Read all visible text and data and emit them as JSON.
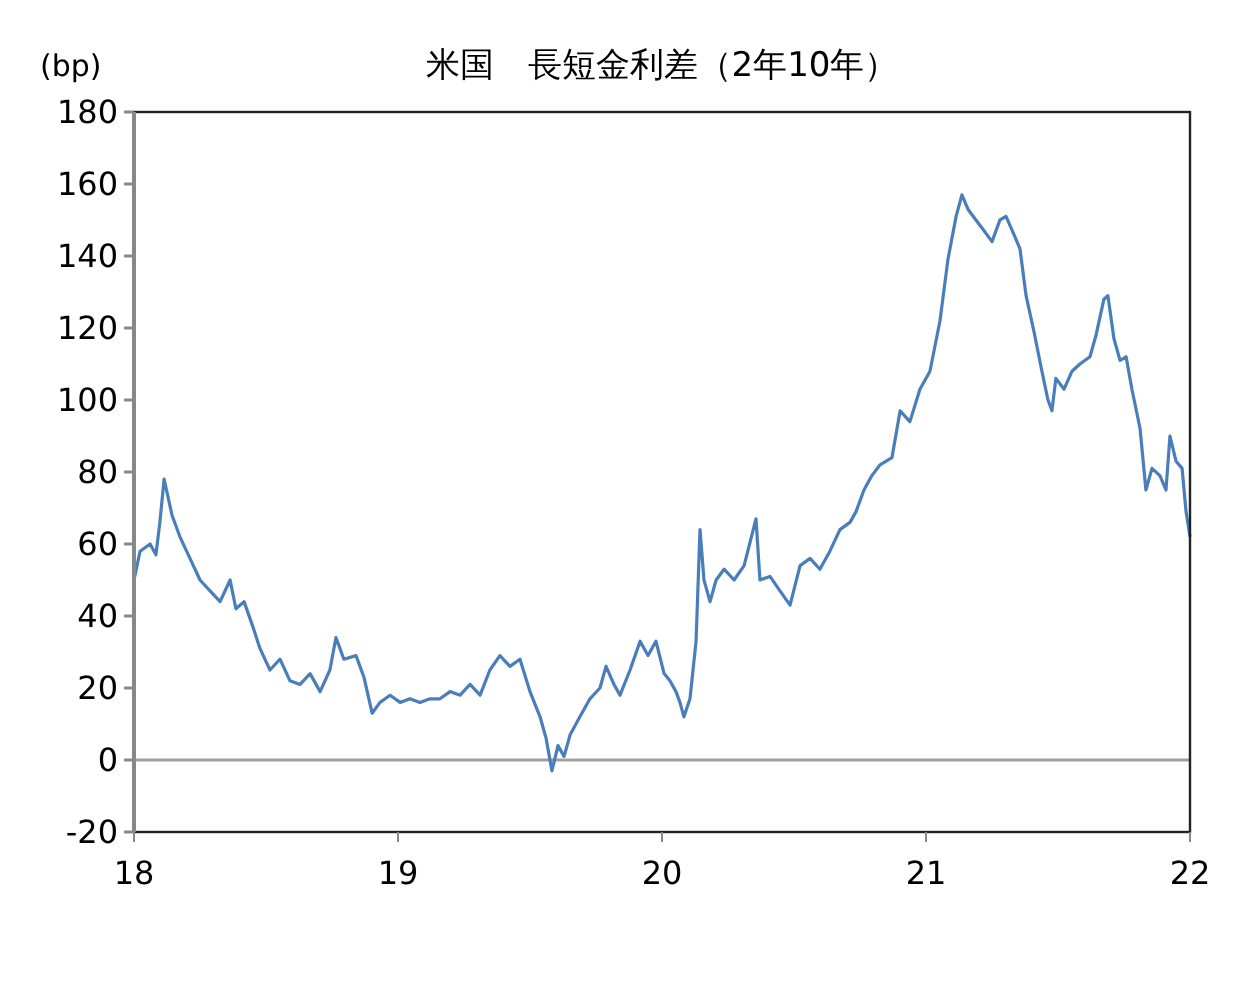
{
  "chart_data": {
    "type": "line",
    "title": "米国　長短金利差（2年10年）",
    "ylabel": "(bp)",
    "xlim": [
      18,
      22
    ],
    "xticks": [
      18,
      19,
      20,
      21,
      22
    ],
    "ylim": [
      -20,
      180
    ],
    "yticks": [
      -20,
      0,
      20,
      40,
      60,
      80,
      100,
      120,
      140,
      160,
      180
    ],
    "grid": false,
    "marker": "none",
    "line_style": "solid",
    "ref_lines": [
      {
        "axis": "y",
        "value": 0,
        "color": "#a0a0a0"
      }
    ],
    "series": [
      {
        "color": "#4a7ebb",
        "x": [
          18.0,
          18.023,
          18.061,
          18.083,
          18.098,
          18.114,
          18.144,
          18.174,
          18.212,
          18.25,
          18.288,
          18.326,
          18.364,
          18.386,
          18.417,
          18.455,
          18.477,
          18.515,
          18.553,
          18.591,
          18.629,
          18.667,
          18.705,
          18.742,
          18.765,
          18.795,
          18.841,
          18.871,
          18.902,
          18.932,
          18.97,
          19.008,
          19.045,
          19.083,
          19.121,
          19.159,
          19.197,
          19.235,
          19.273,
          19.311,
          19.348,
          19.386,
          19.424,
          19.462,
          19.5,
          19.538,
          19.561,
          19.583,
          19.606,
          19.629,
          19.652,
          19.689,
          19.727,
          19.765,
          19.788,
          19.818,
          19.841,
          19.879,
          19.917,
          19.947,
          19.977,
          20.008,
          20.03,
          20.053,
          20.068,
          20.083,
          20.106,
          20.129,
          20.144,
          20.159,
          20.182,
          20.205,
          20.235,
          20.273,
          20.311,
          20.356,
          20.371,
          20.409,
          20.447,
          20.485,
          20.523,
          20.561,
          20.598,
          20.636,
          20.674,
          20.712,
          20.735,
          20.765,
          20.795,
          20.826,
          20.871,
          20.902,
          20.939,
          20.977,
          21.015,
          21.053,
          21.083,
          21.114,
          21.136,
          21.159,
          21.189,
          21.22,
          21.25,
          21.28,
          21.303,
          21.333,
          21.356,
          21.379,
          21.409,
          21.439,
          21.462,
          21.477,
          21.492,
          21.523,
          21.553,
          21.583,
          21.621,
          21.644,
          21.674,
          21.689,
          21.712,
          21.735,
          21.758,
          21.78,
          21.811,
          21.833,
          21.856,
          21.886,
          21.909,
          21.924,
          21.947,
          21.97,
          21.985,
          22.0
        ],
        "values": [
          50,
          58,
          60,
          57,
          66,
          78,
          68,
          62,
          56,
          50,
          47,
          44,
          50,
          42,
          44,
          36,
          31,
          25,
          28,
          22,
          21,
          24,
          19,
          25,
          34,
          28,
          29,
          23,
          13,
          16,
          18,
          16,
          17,
          16,
          17,
          17,
          19,
          18,
          21,
          18,
          25,
          29,
          26,
          28,
          19,
          12,
          6,
          -3,
          4,
          1,
          7,
          12,
          17,
          20,
          26,
          21,
          18,
          25,
          33,
          29,
          33,
          24,
          22,
          19,
          16,
          12,
          17,
          33,
          64,
          50,
          44,
          50,
          53,
          50,
          54,
          67,
          50,
          51,
          47,
          43,
          54,
          56,
          53,
          58,
          64,
          66,
          69,
          75,
          79,
          82,
          84,
          97,
          94,
          103,
          108,
          122,
          139,
          151,
          157,
          153,
          150,
          147,
          144,
          150,
          151,
          146,
          142,
          129,
          119,
          108,
          100,
          97,
          106,
          103,
          108,
          110,
          112,
          118,
          128,
          129,
          117,
          111,
          112,
          103,
          92,
          75,
          81,
          79,
          75,
          90,
          83,
          81,
          69,
          62
        ]
      }
    ]
  }
}
